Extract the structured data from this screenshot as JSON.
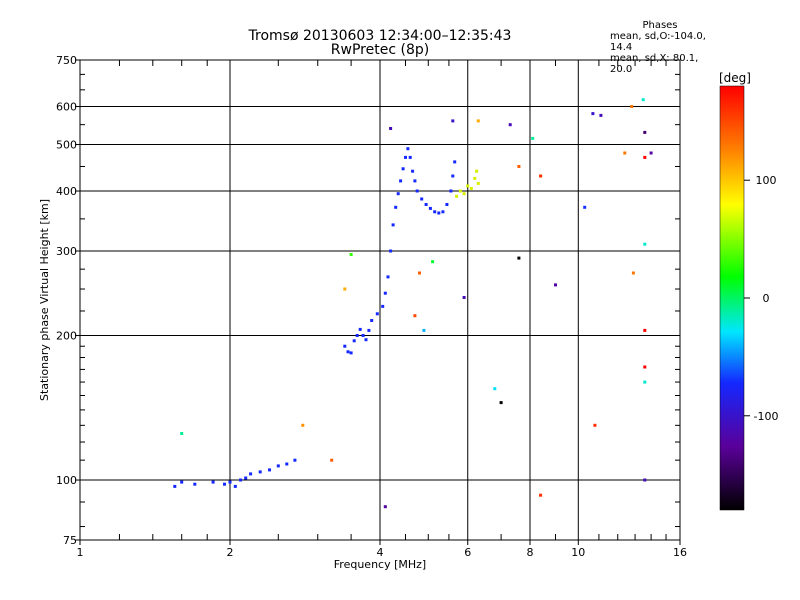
{
  "header": {
    "title_line1": "Tromsø 20130603 12:34:00–12:35:43",
    "title_line2": "RwPretec (8p)"
  },
  "stats": {
    "title": "Phases",
    "line1": "mean, sd,O:-104.0, 14.4",
    "line2": "mean, sd,X:  80.1, 20.0"
  },
  "colorbar": {
    "label": "[deg]",
    "ticks": [
      "100",
      "0",
      "-100"
    ],
    "tick_values": [
      100,
      0,
      -100
    ],
    "range": [
      -180,
      180
    ]
  },
  "chart_data": {
    "type": "scatter",
    "xlabel": "Frequency [MHz]",
    "ylabel": "Stationary phase Virtual Height [km]",
    "xscale": "log",
    "yscale": "log",
    "xlim": [
      1,
      16
    ],
    "ylim": [
      75,
      750
    ],
    "grid": true,
    "xticks": [
      1,
      2,
      4,
      6,
      8,
      10,
      16
    ],
    "yticks": [
      75,
      100,
      200,
      300,
      400,
      500,
      600,
      750
    ],
    "series": [
      {
        "color_meaning": "O-mode trace",
        "color": "#1428ff",
        "points": [
          [
            1.55,
            97
          ],
          [
            1.6,
            99
          ],
          [
            1.7,
            98
          ],
          [
            1.85,
            99
          ],
          [
            1.95,
            98
          ],
          [
            2.0,
            99
          ],
          [
            2.05,
            97
          ],
          [
            2.1,
            100
          ],
          [
            2.15,
            101
          ],
          [
            2.2,
            103
          ],
          [
            2.3,
            104
          ],
          [
            2.4,
            105
          ],
          [
            2.5,
            107
          ],
          [
            2.6,
            108
          ],
          [
            2.7,
            110
          ],
          [
            3.4,
            190
          ],
          [
            3.45,
            185
          ],
          [
            3.5,
            184
          ],
          [
            3.55,
            195
          ],
          [
            3.6,
            200
          ],
          [
            3.65,
            206
          ],
          [
            3.7,
            200
          ],
          [
            3.75,
            196
          ],
          [
            3.8,
            205
          ],
          [
            3.85,
            215
          ],
          [
            3.95,
            222
          ],
          [
            4.05,
            230
          ],
          [
            4.1,
            245
          ],
          [
            4.15,
            265
          ],
          [
            4.2,
            300
          ],
          [
            4.25,
            340
          ],
          [
            4.3,
            370
          ],
          [
            4.35,
            395
          ],
          [
            4.4,
            420
          ],
          [
            4.45,
            445
          ],
          [
            4.5,
            470
          ],
          [
            4.55,
            490
          ],
          [
            4.6,
            470
          ],
          [
            4.65,
            440
          ],
          [
            4.7,
            420
          ],
          [
            4.75,
            400
          ],
          [
            4.85,
            385
          ],
          [
            4.95,
            375
          ],
          [
            5.05,
            368
          ],
          [
            5.15,
            362
          ],
          [
            5.25,
            360
          ],
          [
            5.35,
            362
          ],
          [
            5.45,
            375
          ],
          [
            5.55,
            400
          ],
          [
            5.6,
            430
          ],
          [
            5.65,
            460
          ]
        ]
      },
      {
        "color_meaning": "X-mode trace",
        "color": "#d8f000",
        "points": [
          [
            5.7,
            390
          ],
          [
            5.8,
            400
          ],
          [
            5.9,
            395
          ],
          [
            6.0,
            410
          ],
          [
            6.1,
            405
          ],
          [
            6.2,
            425
          ],
          [
            6.25,
            440
          ],
          [
            6.3,
            415
          ]
        ]
      },
      {
        "color_meaning": "scattered echoes",
        "points": [
          [
            1.6,
            125,
            -10
          ],
          [
            2.8,
            130,
            120
          ],
          [
            3.2,
            110,
            140
          ],
          [
            3.4,
            250,
            110
          ],
          [
            3.5,
            295,
            30
          ],
          [
            4.1,
            88,
            -120
          ],
          [
            4.2,
            540,
            -110
          ],
          [
            4.7,
            220,
            150
          ],
          [
            4.8,
            270,
            140
          ],
          [
            4.9,
            205,
            -40
          ],
          [
            5.1,
            285,
            10
          ],
          [
            5.6,
            560,
            -100
          ],
          [
            5.9,
            240,
            -110
          ],
          [
            6.3,
            560,
            110
          ],
          [
            6.8,
            155,
            -30
          ],
          [
            7.0,
            145,
            -180
          ],
          [
            7.3,
            550,
            -110
          ],
          [
            7.6,
            290,
            -200
          ],
          [
            7.6,
            450,
            140
          ],
          [
            8.1,
            515,
            -10
          ],
          [
            8.4,
            93,
            160
          ],
          [
            8.4,
            430,
            160
          ],
          [
            9.0,
            255,
            -120
          ],
          [
            10.3,
            370,
            -70
          ],
          [
            10.7,
            580,
            -100
          ],
          [
            10.8,
            130,
            160
          ],
          [
            11.1,
            575,
            -110
          ],
          [
            12.4,
            480,
            130
          ],
          [
            12.8,
            600,
            130
          ],
          [
            12.9,
            270,
            130
          ],
          [
            13.5,
            620,
            -20
          ],
          [
            13.6,
            530,
            -140
          ],
          [
            13.6,
            470,
            190
          ],
          [
            13.6,
            310,
            -20
          ],
          [
            13.6,
            205,
            180
          ],
          [
            13.6,
            172,
            190
          ],
          [
            13.6,
            160,
            -20
          ],
          [
            13.6,
            100,
            -110
          ],
          [
            14.0,
            480,
            -120
          ]
        ]
      }
    ]
  }
}
